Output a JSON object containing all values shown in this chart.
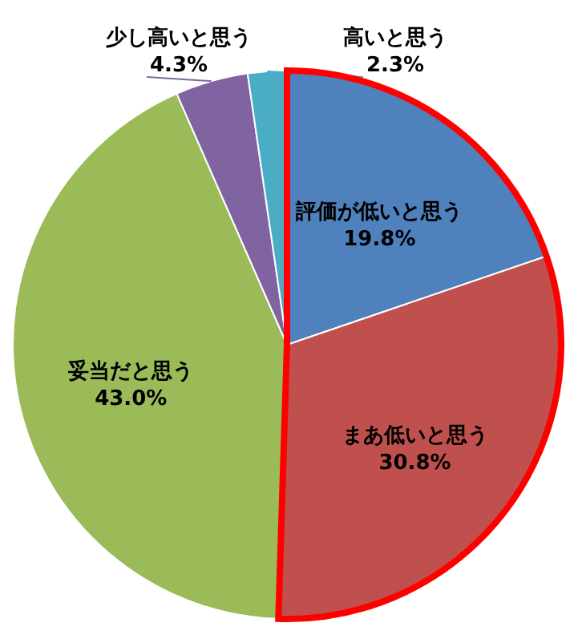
{
  "chart_data": {
    "type": "pie",
    "categories": [
      "評価が低いと思う",
      "まあ低いと思う",
      "妥当だと思う",
      "少し高いと思う",
      "高いと思う"
    ],
    "values": [
      19.8,
      30.8,
      43.0,
      4.3,
      2.3
    ],
    "value_labels": [
      "19.8%",
      "30.8%",
      "43.0%",
      "4.3%",
      "2.3%"
    ],
    "colors": [
      "#4f81bd",
      "#c0504d",
      "#9bbb59",
      "#8064a2",
      "#4bacc6"
    ]
  }
}
